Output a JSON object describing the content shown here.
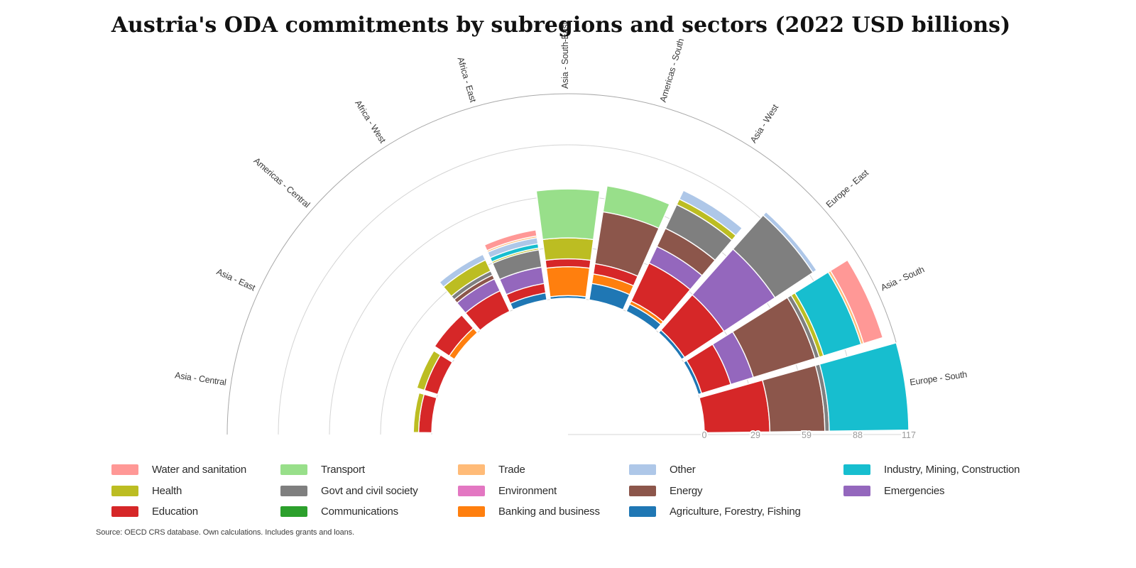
{
  "title": "Austria's ODA commitments by subregions and sectors (2022 USD billions)",
  "source_note": "Source: OECD CRS database. Own calculations. Includes grants and loans.",
  "colors": {
    "Agriculture, Forestry, Fishing": "#1f77b4",
    "Banking and business": "#ff7f0e",
    "Communications": "#2ca02c",
    "Education": "#d62728",
    "Emergencies": "#9467bd",
    "Energy": "#8c564b",
    "Environment": "#e377c2",
    "Govt and civil society": "#7f7f7f",
    "Health": "#bcbd22",
    "Industry, Mining, Construction": "#17becf",
    "Other": "#aec7e8",
    "Trade": "#ffbb78",
    "Transport": "#98df8a",
    "Water and sanitation": "#ff9896"
  },
  "legend": {
    "columns": [
      [
        "Water and sanitation",
        "Health",
        "Education"
      ],
      [
        "Transport",
        "Govt and civil society",
        "Communications"
      ],
      [
        "Trade",
        "Environment",
        "Banking and business"
      ],
      [
        "Other",
        "Energy",
        "Agriculture, Forestry, Fishing"
      ],
      [
        "Industry, Mining, Construction",
        "Emergencies"
      ]
    ]
  },
  "chart_data": {
    "type": "polar_stacked_bar",
    "title": "Austria's ODA commitments by subregions and sectors (2022 USD billions)",
    "units": "2022 USD billions",
    "angular_span_deg": 180,
    "radial_axis": {
      "min": 0,
      "max": 117,
      "tick_labels": [
        "0",
        "29",
        "59",
        "88",
        "117"
      ],
      "grid": true
    },
    "sector_stack_order": [
      "Agriculture, Forestry, Fishing",
      "Banking and business",
      "Communications",
      "Education",
      "Emergencies",
      "Energy",
      "Environment",
      "Govt and civil society",
      "Health",
      "Industry, Mining, Construction",
      "Other",
      "Trade",
      "Transport",
      "Water and sanitation"
    ],
    "subregions": [
      {
        "name": "Asia - Central",
        "total": 10.5,
        "segments": [
          {
            "sector": "Education",
            "value": 7.5
          },
          {
            "sector": "Health",
            "value": 3
          }
        ]
      },
      {
        "name": "Asia - East",
        "total": 12.5,
        "segments": [
          {
            "sector": "Education",
            "value": 8
          },
          {
            "sector": "Health",
            "value": 4.5
          }
        ]
      },
      {
        "name": "Americas - Central",
        "total": 13.5,
        "segments": [
          {
            "sector": "Banking and business",
            "value": 3.5
          },
          {
            "sector": "Education",
            "value": 10
          }
        ]
      },
      {
        "name": "Africa - West",
        "total": 36,
        "segments": [
          {
            "sector": "Education",
            "value": 13
          },
          {
            "sector": "Emergencies",
            "value": 7.5
          },
          {
            "sector": "Energy",
            "value": 2.5
          },
          {
            "sector": "Govt and civil society",
            "value": 2.5
          },
          {
            "sector": "Health",
            "value": 7
          },
          {
            "sector": "Other",
            "value": 3.5
          }
        ]
      },
      {
        "name": "Africa - East",
        "total": 40.5,
        "segments": [
          {
            "sector": "Agriculture, Forestry, Fishing",
            "value": 4
          },
          {
            "sector": "Education",
            "value": 5.5
          },
          {
            "sector": "Emergencies",
            "value": 9.5
          },
          {
            "sector": "Govt and civil society",
            "value": 10
          },
          {
            "sector": "Health",
            "value": 1
          },
          {
            "sector": "Industry, Mining, Construction",
            "value": 2.5
          },
          {
            "sector": "Other",
            "value": 3.5
          },
          {
            "sector": "Trade",
            "value": 1
          },
          {
            "sector": "Water and sanitation",
            "value": 3.5
          }
        ]
      },
      {
        "name": "Asia - South-East",
        "total": 62.5,
        "segments": [
          {
            "sector": "Agriculture, Forestry, Fishing",
            "value": 1.5
          },
          {
            "sector": "Banking and business",
            "value": 16.5
          },
          {
            "sector": "Education",
            "value": 4.5
          },
          {
            "sector": "Health",
            "value": 12
          },
          {
            "sector": "Transport",
            "value": 28
          }
        ]
      },
      {
        "name": "Americas - South",
        "total": 66,
        "segments": [
          {
            "sector": "Agriculture, Forestry, Fishing",
            "value": 9.5
          },
          {
            "sector": "Banking and business",
            "value": 5.5
          },
          {
            "sector": "Education",
            "value": 6
          },
          {
            "sector": "Energy",
            "value": 30
          },
          {
            "sector": "Transport",
            "value": 15
          }
        ]
      },
      {
        "name": "Asia - West",
        "total": 76.5,
        "segments": [
          {
            "sector": "Agriculture, Forestry, Fishing",
            "value": 4.5
          },
          {
            "sector": "Banking and business",
            "value": 2
          },
          {
            "sector": "Education",
            "value": 24
          },
          {
            "sector": "Emergencies",
            "value": 10.5
          },
          {
            "sector": "Energy",
            "value": 11.5
          },
          {
            "sector": "Govt and civil society",
            "value": 15
          },
          {
            "sector": "Health",
            "value": 3.5
          },
          {
            "sector": "Other",
            "value": 5.5
          }
        ]
      },
      {
        "name": "Europe - East",
        "total": 92.5,
        "segments": [
          {
            "sector": "Agriculture, Forestry, Fishing",
            "value": 2
          },
          {
            "sector": "Education",
            "value": 27
          },
          {
            "sector": "Emergencies",
            "value": 35
          },
          {
            "sector": "Govt and civil society",
            "value": 26
          },
          {
            "sector": "Other",
            "value": 2.5
          }
        ]
      },
      {
        "name": "Asia - South",
        "total": 110.5,
        "segments": [
          {
            "sector": "Agriculture, Forestry, Fishing",
            "value": 2
          },
          {
            "sector": "Education",
            "value": 17.5
          },
          {
            "sector": "Emergencies",
            "value": 13.5
          },
          {
            "sector": "Energy",
            "value": 37
          },
          {
            "sector": "Govt and civil society",
            "value": 2.5
          },
          {
            "sector": "Health",
            "value": 2.5
          },
          {
            "sector": "Industry, Mining, Construction",
            "value": 22.5
          },
          {
            "sector": "Trade",
            "value": 1.5
          },
          {
            "sector": "Water and sanitation",
            "value": 11.5
          }
        ]
      },
      {
        "name": "Europe - South",
        "total": 117,
        "segments": [
          {
            "sector": "Education",
            "value": 37.5
          },
          {
            "sector": "Energy",
            "value": 31.5
          },
          {
            "sector": "Govt and civil society",
            "value": 2.5
          },
          {
            "sector": "Industry, Mining, Construction",
            "value": 45.5
          }
        ]
      }
    ]
  }
}
